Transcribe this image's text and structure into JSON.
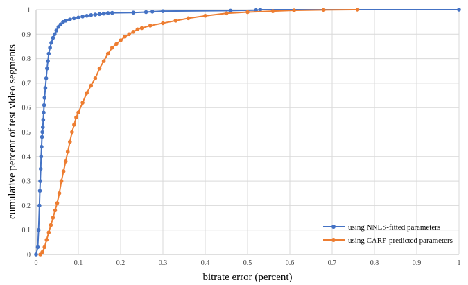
{
  "chart_data": {
    "type": "scatter",
    "xlabel": "bitrate error (percent)",
    "ylabel": "cumulative percent of test video segments",
    "xlim": [
      0,
      1
    ],
    "ylim": [
      0,
      1
    ],
    "x_ticks": [
      "0",
      "0.1",
      "0.2",
      "0.3",
      "0.4",
      "0.5",
      "0.6",
      "0.7",
      "0.8",
      "0.9",
      "1"
    ],
    "y_ticks": [
      "0",
      "0.1",
      "0.2",
      "0.3",
      "0.4",
      "0.5",
      "0.6",
      "0.7",
      "0.8",
      "0.9",
      "1"
    ],
    "grid": true,
    "legend_position": "bottom-right",
    "series": [
      {
        "name": "using NNLS-fitted parameters",
        "color": "#4472C4",
        "x": [
          0,
          0.004,
          0.006,
          0.008,
          0.009,
          0.01,
          0.011,
          0.012,
          0.013,
          0.014,
          0.015,
          0.016,
          0.017,
          0.018,
          0.019,
          0.02,
          0.022,
          0.024,
          0.026,
          0.028,
          0.03,
          0.033,
          0.036,
          0.04,
          0.044,
          0.048,
          0.053,
          0.058,
          0.064,
          0.07,
          0.08,
          0.09,
          0.1,
          0.11,
          0.12,
          0.13,
          0.14,
          0.15,
          0.16,
          0.17,
          0.18,
          0.23,
          0.26,
          0.275,
          0.3,
          0.46,
          0.52,
          0.53,
          1.0
        ],
        "y": [
          0,
          0.03,
          0.1,
          0.2,
          0.26,
          0.3,
          0.35,
          0.4,
          0.44,
          0.48,
          0.5,
          0.52,
          0.55,
          0.58,
          0.61,
          0.64,
          0.68,
          0.72,
          0.76,
          0.79,
          0.82,
          0.845,
          0.865,
          0.885,
          0.9,
          0.915,
          0.93,
          0.94,
          0.95,
          0.955,
          0.96,
          0.965,
          0.968,
          0.972,
          0.975,
          0.978,
          0.98,
          0.982,
          0.984,
          0.986,
          0.987,
          0.988,
          0.99,
          0.992,
          0.994,
          0.996,
          0.998,
          1.0,
          1.0
        ]
      },
      {
        "name": "using CARF-predicted parameters",
        "color": "#ED7D31",
        "x": [
          0.01,
          0.015,
          0.02,
          0.025,
          0.03,
          0.035,
          0.04,
          0.045,
          0.05,
          0.055,
          0.06,
          0.065,
          0.07,
          0.075,
          0.08,
          0.085,
          0.09,
          0.095,
          0.1,
          0.11,
          0.12,
          0.13,
          0.14,
          0.15,
          0.16,
          0.17,
          0.18,
          0.19,
          0.2,
          0.21,
          0.22,
          0.23,
          0.24,
          0.25,
          0.27,
          0.3,
          0.33,
          0.36,
          0.4,
          0.45,
          0.5,
          0.56,
          0.61,
          0.68,
          0.76
        ],
        "y": [
          0,
          0.01,
          0.03,
          0.06,
          0.09,
          0.12,
          0.15,
          0.18,
          0.21,
          0.25,
          0.3,
          0.34,
          0.38,
          0.42,
          0.46,
          0.5,
          0.53,
          0.56,
          0.58,
          0.62,
          0.66,
          0.69,
          0.72,
          0.76,
          0.79,
          0.82,
          0.845,
          0.86,
          0.875,
          0.89,
          0.9,
          0.91,
          0.92,
          0.925,
          0.935,
          0.945,
          0.955,
          0.965,
          0.975,
          0.985,
          0.99,
          0.994,
          0.997,
          0.999,
          1.0
        ]
      }
    ]
  }
}
